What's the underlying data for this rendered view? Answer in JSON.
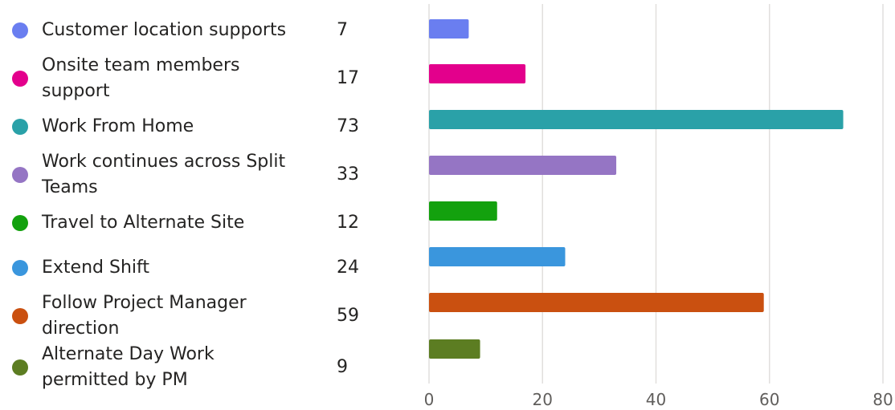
{
  "chart_data": {
    "type": "bar",
    "orientation": "horizontal",
    "categories": [
      "Customer location supports",
      "Onsite team members support",
      "Work From Home",
      "Work continues across Split Teams",
      "Travel to Alternate Site",
      "Extend Shift",
      "Follow Project Manager direction",
      "Alternate Day Work permitted by PM"
    ],
    "values": [
      7,
      17,
      73,
      33,
      12,
      24,
      59,
      9
    ],
    "colors": [
      "#6a7ef0",
      "#e3008c",
      "#2aa1a8",
      "#9575c4",
      "#13a10e",
      "#3a96dd",
      "#ca5010",
      "#5c7d22"
    ],
    "xlim": [
      0,
      80
    ],
    "xticks": [
      "0",
      "20",
      "40",
      "60",
      "80"
    ],
    "grid": true,
    "legend": "left",
    "title": "",
    "xlabel": "",
    "ylabel": ""
  }
}
